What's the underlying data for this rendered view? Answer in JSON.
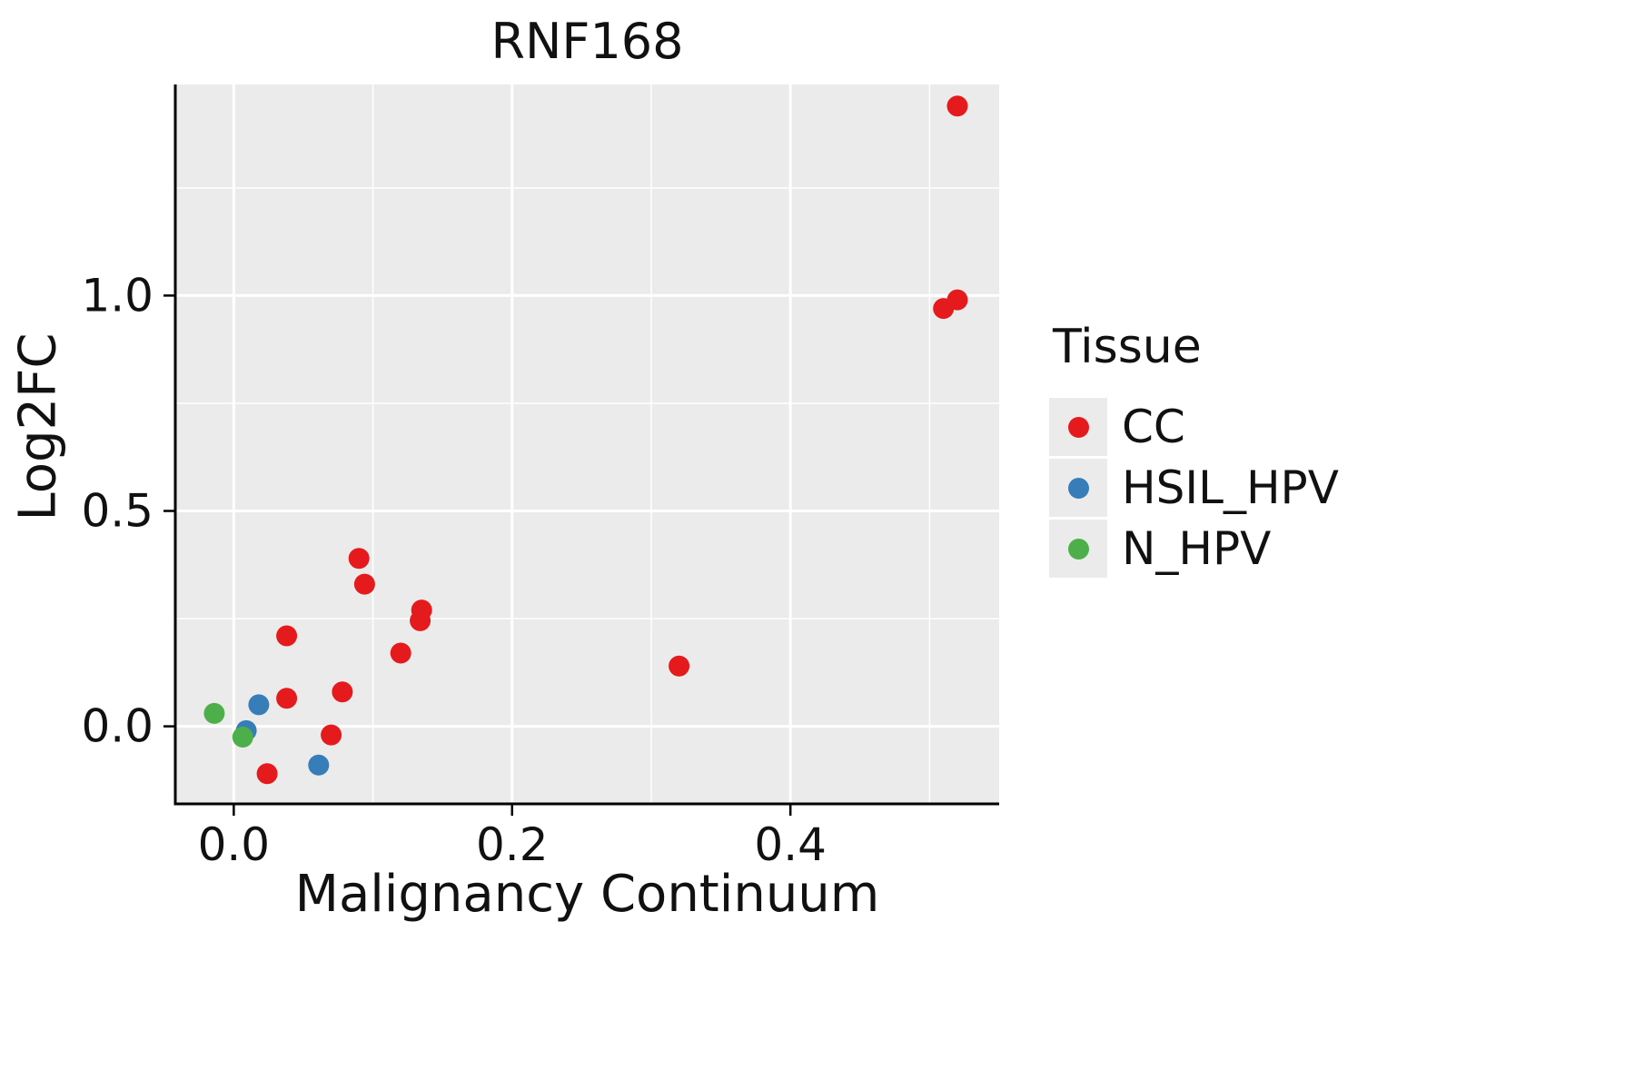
{
  "title": "RNF168",
  "chart_data": {
    "type": "scatter",
    "title": "RNF168",
    "xlabel": "Malignancy Continuum",
    "ylabel": "Log2FC",
    "xlim": [
      -0.042,
      0.55
    ],
    "ylim": [
      -0.18,
      1.49
    ],
    "x_ticks": [
      0.0,
      0.2,
      0.4
    ],
    "y_ticks": [
      0.0,
      0.5,
      1.0
    ],
    "x_minor_ticks": [
      0.1,
      0.3,
      0.5
    ],
    "y_minor_ticks": [
      0.25,
      0.75,
      1.25
    ],
    "grid": true,
    "panel_bg": "#EBEBEB",
    "grid_color": "#FFFFFF",
    "axis_color": "#000000",
    "legend_title": "Tissue",
    "legend_position": "right",
    "series": [
      {
        "name": "CC",
        "color": "#E41A1C",
        "points": [
          [
            0.52,
            1.44
          ],
          [
            0.51,
            0.97
          ],
          [
            0.52,
            0.99
          ],
          [
            0.09,
            0.39
          ],
          [
            0.094,
            0.33
          ],
          [
            0.135,
            0.27
          ],
          [
            0.134,
            0.245
          ],
          [
            0.038,
            0.21
          ],
          [
            0.12,
            0.17
          ],
          [
            0.32,
            0.14
          ],
          [
            0.078,
            0.08
          ],
          [
            0.038,
            0.065
          ],
          [
            0.07,
            -0.02
          ],
          [
            0.024,
            -0.11
          ]
        ]
      },
      {
        "name": "HSIL_HPV",
        "color": "#377EB8",
        "points": [
          [
            0.018,
            0.05
          ],
          [
            0.009,
            -0.01
          ],
          [
            0.061,
            -0.09
          ]
        ]
      },
      {
        "name": "N_HPV",
        "color": "#4DAF4A",
        "points": [
          [
            -0.014,
            0.03
          ],
          [
            0.0065,
            -0.025
          ]
        ]
      }
    ]
  }
}
